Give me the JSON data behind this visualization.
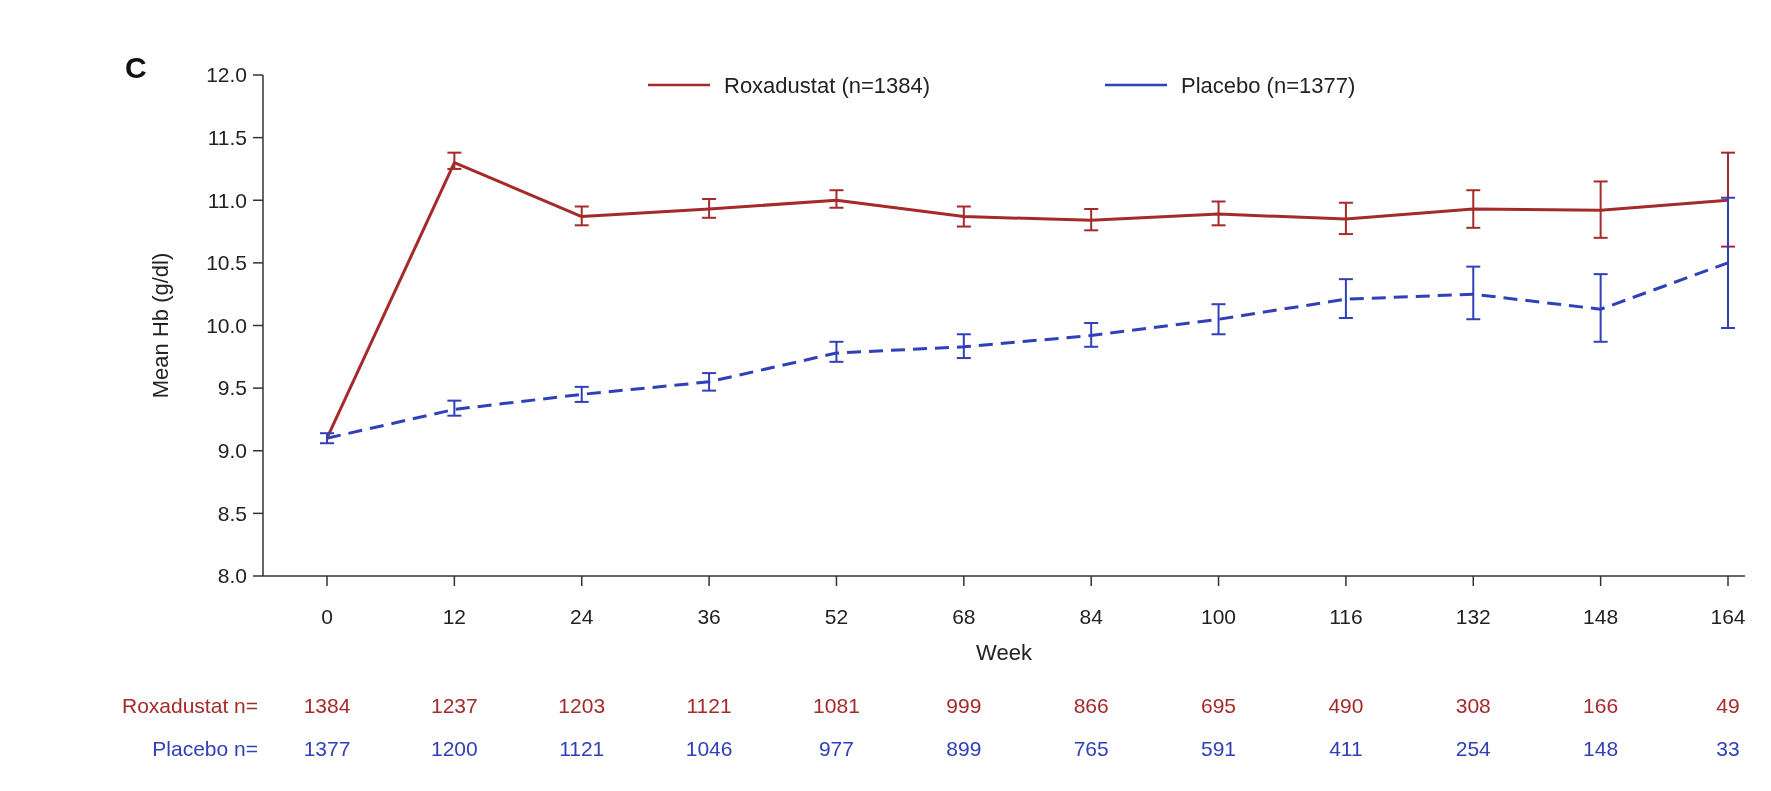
{
  "chart_data": {
    "type": "line",
    "xlabel": "Week",
    "ylabel": "Mean Hb (g/dl)",
    "categories": [
      "0",
      "12",
      "24",
      "36",
      "52",
      "68",
      "84",
      "100",
      "116",
      "132",
      "148",
      "164"
    ],
    "ylim": [
      8.0,
      12.0
    ],
    "yticks": [
      {
        "value": 8,
        "label": "8.0"
      },
      8.5,
      {
        "value": 9,
        "label": "9.0"
      },
      9.5,
      {
        "value": 10,
        "label": "10.0"
      },
      10.5,
      {
        "value": 11,
        "label": "11.0"
      },
      11.5,
      {
        "value": 12,
        "label": "12.0"
      }
    ],
    "grid": false,
    "legend": "top",
    "marker": "none",
    "series": [
      {
        "name": "Roxadustat (n=1384)",
        "color": "#a52a2a",
        "line_style": "solid",
        "values": [
          9.1,
          11.3,
          10.87,
          10.93,
          11.0,
          10.87,
          10.84,
          10.89,
          10.85,
          10.93,
          10.92,
          11.0
        ],
        "errors": [
          null,
          [
            11.25,
            11.38
          ],
          [
            10.8,
            10.95
          ],
          [
            10.86,
            11.01
          ],
          [
            10.94,
            11.08
          ],
          [
            10.79,
            10.95
          ],
          [
            10.76,
            10.93
          ],
          [
            10.8,
            10.99
          ],
          [
            10.73,
            10.98
          ],
          [
            10.78,
            11.08
          ],
          [
            10.7,
            11.15
          ],
          [
            10.63,
            11.38
          ]
        ]
      },
      {
        "name": "Placebo (n=1377)",
        "color": "#3040b8",
        "line_style": "dashed",
        "values": [
          9.1,
          9.33,
          9.45,
          9.55,
          9.78,
          9.83,
          9.92,
          10.05,
          10.21,
          10.25,
          10.13,
          10.5
        ],
        "errors": [
          [
            9.06,
            9.14
          ],
          [
            9.28,
            9.4
          ],
          [
            9.39,
            9.51
          ],
          [
            9.48,
            9.62
          ],
          [
            9.71,
            9.87
          ],
          [
            9.74,
            9.93
          ],
          [
            9.83,
            10.02
          ],
          [
            9.93,
            10.17
          ],
          [
            10.06,
            10.37
          ],
          [
            10.05,
            10.47
          ],
          [
            9.87,
            10.41
          ],
          [
            9.98,
            11.02
          ]
        ]
      }
    ],
    "annotations": [
      "C",
      "Roxadustat n=",
      "1384",
      "1237",
      "1203",
      "1121",
      "1081",
      "999",
      "866",
      "695",
      "490",
      "308",
      "166",
      "49",
      "Placebo n=",
      "1377",
      "1200",
      "1121",
      "1046",
      "977",
      "899",
      "765",
      "591",
      "411",
      "254",
      "148",
      "33"
    ]
  }
}
